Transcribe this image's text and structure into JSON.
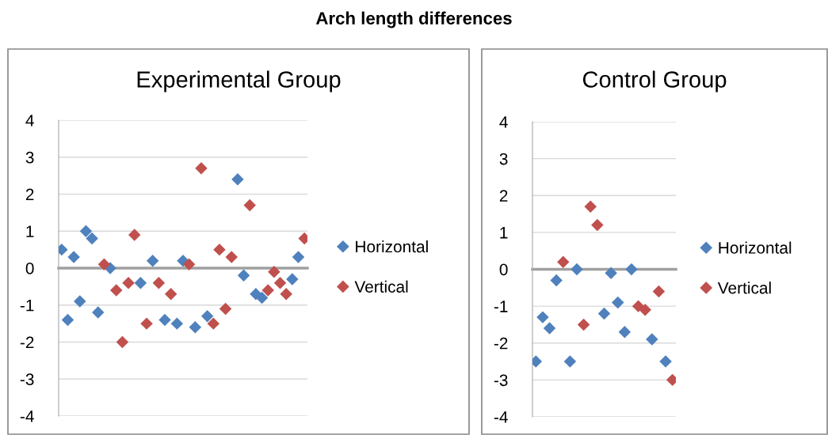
{
  "chart_data": [
    {
      "type": "scatter",
      "title": "Experimental Group",
      "annotations": [
        "Arch length differences"
      ],
      "categories": [
        null,
        null,
        null,
        null,
        null,
        null,
        null,
        null,
        null,
        null,
        null,
        null,
        null,
        null,
        null,
        null,
        null,
        null,
        null,
        null,
        null,
        null,
        null,
        null,
        null,
        null,
        null,
        null,
        null,
        null,
        null,
        null,
        null,
        null,
        null,
        null,
        null,
        null,
        null,
        null,
        null
      ],
      "series": [
        {
          "name": "Horizontal",
          "color": "#4f81bd",
          "values": [
            0.5,
            -1.4,
            0.3,
            -0.9,
            1.0,
            0.8,
            -1.2,
            null,
            0.0,
            null,
            null,
            null,
            null,
            -0.4,
            null,
            0.2,
            null,
            -1.4,
            null,
            -1.5,
            0.2,
            null,
            -1.6,
            null,
            -1.3,
            null,
            null,
            null,
            null,
            2.4,
            -0.2,
            null,
            -0.7,
            -0.8,
            null,
            null,
            null,
            null,
            -0.3,
            0.3,
            null
          ]
        },
        {
          "name": "Vertical",
          "color": "#c0504d",
          "values": [
            null,
            null,
            null,
            null,
            null,
            null,
            null,
            0.1,
            null,
            -0.6,
            -2.0,
            -0.4,
            0.9,
            null,
            -1.5,
            null,
            -0.4,
            null,
            -0.7,
            null,
            null,
            0.1,
            null,
            2.7,
            null,
            -1.5,
            0.5,
            -1.1,
            0.3,
            null,
            null,
            1.7,
            null,
            null,
            -0.6,
            -0.1,
            -0.4,
            -0.7,
            null,
            null,
            0.8
          ]
        }
      ],
      "ylim": [
        -4,
        4
      ],
      "yticks": [
        -4,
        -3,
        -2,
        -1,
        0,
        1,
        2,
        3,
        4
      ],
      "grid": "y",
      "legend": "right",
      "marker": "diamond",
      "tick_labels": "y"
    },
    {
      "type": "scatter",
      "title": "Control Group",
      "categories": [
        null,
        null,
        null,
        null,
        null,
        null,
        null,
        null,
        null,
        null,
        null,
        null,
        null,
        null,
        null,
        null,
        null,
        null,
        null,
        null,
        null
      ],
      "series": [
        {
          "name": "Horizontal",
          "color": "#4f81bd",
          "values": [
            -2.5,
            -1.3,
            -1.6,
            -0.3,
            null,
            -2.5,
            0.0,
            null,
            null,
            null,
            -1.2,
            -0.1,
            -0.9,
            -1.7,
            0.0,
            null,
            null,
            -1.9,
            null,
            -2.5,
            null
          ]
        },
        {
          "name": "Vertical",
          "color": "#c0504d",
          "values": [
            null,
            null,
            null,
            null,
            0.2,
            null,
            null,
            -1.5,
            1.7,
            1.2,
            null,
            null,
            null,
            null,
            null,
            -1.0,
            -1.1,
            null,
            -0.6,
            null,
            -3.0
          ]
        }
      ],
      "ylim": [
        -4,
        4
      ],
      "yticks": [
        -4,
        -3,
        -2,
        -1,
        0,
        1,
        2,
        3,
        4
      ],
      "grid": "y",
      "legend": "right",
      "marker": "diamond",
      "tick_labels": "y"
    }
  ]
}
